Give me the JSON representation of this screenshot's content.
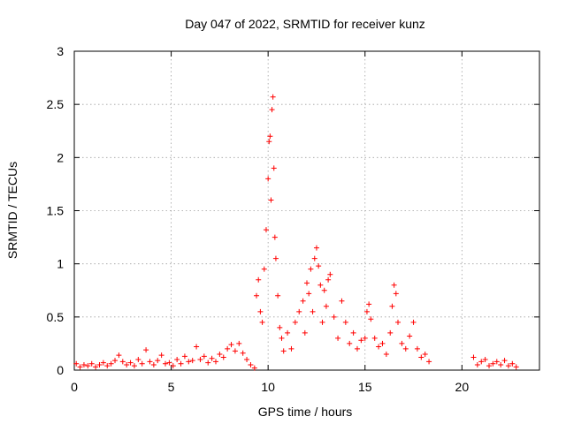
{
  "chart_data": {
    "type": "scatter",
    "title": "Day 047 of 2022, SRMTID for receiver kunz",
    "xlabel": "GPS time / hours",
    "ylabel": "SRMTID / TECUs",
    "xlim": [
      0,
      24
    ],
    "ylim": [
      0,
      3
    ],
    "xticks": [
      0,
      5,
      10,
      15,
      20
    ],
    "xtick_labels": [
      "0",
      "5",
      "10",
      "15",
      "20"
    ],
    "yticks": [
      0,
      0.5,
      1,
      1.5,
      2,
      2.5,
      3
    ],
    "ytick_labels": [
      "0",
      "0.5",
      "1",
      "1.5",
      "2",
      "2.5",
      "3"
    ],
    "grid": true,
    "marker": "+",
    "series": [
      {
        "name": "SRMTID",
        "color": "#ff0000",
        "points": [
          [
            0.1,
            0.06
          ],
          [
            0.3,
            0.03
          ],
          [
            0.5,
            0.05
          ],
          [
            0.7,
            0.04
          ],
          [
            0.9,
            0.06
          ],
          [
            1.1,
            0.03
          ],
          [
            1.3,
            0.05
          ],
          [
            1.5,
            0.07
          ],
          [
            1.7,
            0.04
          ],
          [
            1.9,
            0.06
          ],
          [
            2.1,
            0.09
          ],
          [
            2.3,
            0.14
          ],
          [
            2.5,
            0.08
          ],
          [
            2.7,
            0.05
          ],
          [
            2.9,
            0.07
          ],
          [
            3.1,
            0.04
          ],
          [
            3.3,
            0.1
          ],
          [
            3.5,
            0.06
          ],
          [
            3.7,
            0.19
          ],
          [
            3.9,
            0.08
          ],
          [
            4.1,
            0.05
          ],
          [
            4.3,
            0.09
          ],
          [
            4.5,
            0.14
          ],
          [
            4.7,
            0.06
          ],
          [
            4.9,
            0.07
          ],
          [
            5.1,
            0.04
          ],
          [
            5.3,
            0.1
          ],
          [
            5.5,
            0.06
          ],
          [
            5.7,
            0.13
          ],
          [
            5.9,
            0.08
          ],
          [
            6.1,
            0.09
          ],
          [
            6.3,
            0.22
          ],
          [
            6.5,
            0.1
          ],
          [
            6.7,
            0.13
          ],
          [
            6.9,
            0.07
          ],
          [
            7.1,
            0.11
          ],
          [
            7.3,
            0.08
          ],
          [
            7.5,
            0.15
          ],
          [
            7.7,
            0.12
          ],
          [
            7.9,
            0.2
          ],
          [
            8.1,
            0.24
          ],
          [
            8.3,
            0.18
          ],
          [
            8.5,
            0.25
          ],
          [
            8.7,
            0.16
          ],
          [
            8.9,
            0.1
          ],
          [
            9.1,
            0.05
          ],
          [
            9.3,
            0.02
          ],
          [
            9.4,
            0.7
          ],
          [
            9.5,
            0.85
          ],
          [
            9.6,
            0.55
          ],
          [
            9.7,
            0.45
          ],
          [
            9.8,
            0.95
          ],
          [
            9.9,
            1.32
          ],
          [
            10.0,
            1.8
          ],
          [
            10.05,
            2.15
          ],
          [
            10.1,
            2.2
          ],
          [
            10.15,
            1.6
          ],
          [
            10.2,
            2.45
          ],
          [
            10.25,
            2.57
          ],
          [
            10.3,
            1.9
          ],
          [
            10.35,
            1.25
          ],
          [
            10.4,
            1.05
          ],
          [
            10.5,
            0.7
          ],
          [
            10.6,
            0.4
          ],
          [
            10.7,
            0.3
          ],
          [
            10.8,
            0.18
          ],
          [
            11.0,
            0.35
          ],
          [
            11.2,
            0.2
          ],
          [
            11.4,
            0.45
          ],
          [
            11.6,
            0.55
          ],
          [
            11.8,
            0.65
          ],
          [
            11.9,
            0.35
          ],
          [
            12.0,
            0.82
          ],
          [
            12.1,
            0.72
          ],
          [
            12.2,
            0.95
          ],
          [
            12.3,
            0.55
          ],
          [
            12.4,
            1.05
          ],
          [
            12.5,
            1.15
          ],
          [
            12.6,
            0.98
          ],
          [
            12.7,
            0.8
          ],
          [
            12.8,
            0.45
          ],
          [
            12.9,
            0.75
          ],
          [
            13.0,
            0.6
          ],
          [
            13.1,
            0.85
          ],
          [
            13.2,
            0.9
          ],
          [
            13.4,
            0.5
          ],
          [
            13.6,
            0.3
          ],
          [
            13.8,
            0.65
          ],
          [
            14.0,
            0.45
          ],
          [
            14.2,
            0.25
          ],
          [
            14.4,
            0.35
          ],
          [
            14.6,
            0.2
          ],
          [
            14.8,
            0.28
          ],
          [
            15.0,
            0.3
          ],
          [
            15.1,
            0.55
          ],
          [
            15.2,
            0.62
          ],
          [
            15.3,
            0.48
          ],
          [
            15.5,
            0.3
          ],
          [
            15.7,
            0.22
          ],
          [
            15.9,
            0.25
          ],
          [
            16.1,
            0.15
          ],
          [
            16.3,
            0.35
          ],
          [
            16.4,
            0.6
          ],
          [
            16.5,
            0.8
          ],
          [
            16.6,
            0.72
          ],
          [
            16.7,
            0.45
          ],
          [
            16.9,
            0.25
          ],
          [
            17.1,
            0.2
          ],
          [
            17.3,
            0.32
          ],
          [
            17.5,
            0.45
          ],
          [
            17.7,
            0.2
          ],
          [
            17.9,
            0.12
          ],
          [
            18.1,
            0.15
          ],
          [
            18.3,
            0.08
          ],
          [
            20.6,
            0.12
          ],
          [
            20.8,
            0.05
          ],
          [
            21.0,
            0.08
          ],
          [
            21.2,
            0.1
          ],
          [
            21.4,
            0.04
          ],
          [
            21.6,
            0.06
          ],
          [
            21.8,
            0.08
          ],
          [
            22.0,
            0.05
          ],
          [
            22.2,
            0.09
          ],
          [
            22.4,
            0.04
          ],
          [
            22.6,
            0.06
          ],
          [
            22.8,
            0.03
          ]
        ]
      }
    ]
  }
}
